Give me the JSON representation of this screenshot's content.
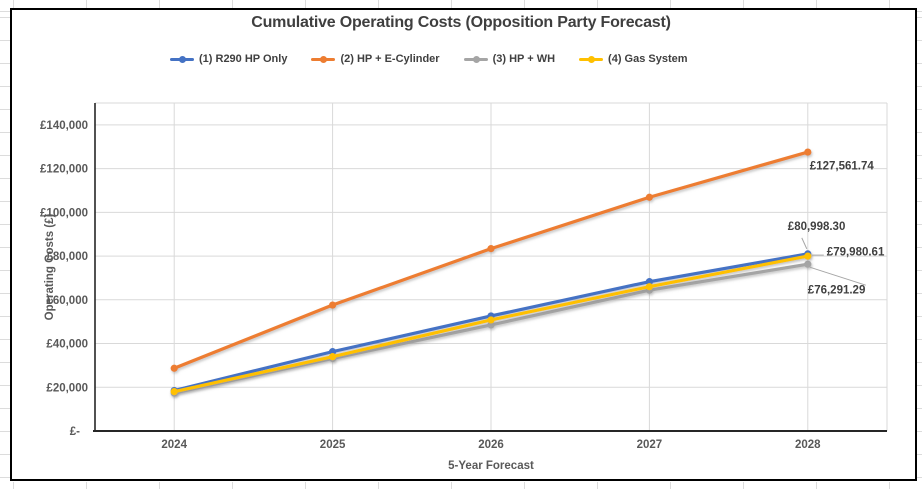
{
  "chart_data": {
    "type": "line",
    "title": "Cumulative Operating Costs (Opposition Party Forecast)",
    "xlabel": "5-Year Forecast",
    "ylabel": "Operating Costs (£)",
    "categories": [
      "2024",
      "2025",
      "2026",
      "2027",
      "2028"
    ],
    "series": [
      {
        "name": "(1) R290 HP Only",
        "color": "#4472C4",
        "values": [
          18500,
          36300,
          52600,
          68300,
          80998.3
        ],
        "end_label": "£80,998.30"
      },
      {
        "name": "(2) HP + E-Cylinder",
        "color": "#ED7D31",
        "values": [
          28700,
          57600,
          83400,
          106900,
          127561.74
        ],
        "end_label": "£127,561.74"
      },
      {
        "name": "(3) HP + WH",
        "color": "#A5A5A5",
        "values": [
          17400,
          33200,
          48500,
          64400,
          76291.29
        ],
        "end_label": "£76,291.29"
      },
      {
        "name": "(4) Gas System",
        "color": "#FFC000",
        "values": [
          18000,
          34000,
          50800,
          66000,
          79980.61
        ],
        "end_label": "£79,980.61"
      }
    ],
    "ylim": [
      0,
      150000
    ],
    "yticks": [
      {
        "value": 140000,
        "label": "£140,000"
      },
      {
        "value": 120000,
        "label": "£120,000"
      },
      {
        "value": 100000,
        "label": "£100,000"
      },
      {
        "value": 80000,
        "label": "£80,000"
      },
      {
        "value": 60000,
        "label": "£60,000"
      },
      {
        "value": 40000,
        "label": "£40,000"
      },
      {
        "value": 20000,
        "label": "£20,000"
      },
      {
        "value": 0,
        "label": "£-"
      }
    ],
    "grid": true,
    "legend_position": "top",
    "colors": {
      "gridline": "#d9d9d9",
      "axis_line": "#262626",
      "tick_text": "#595959",
      "label_text": "#404040"
    }
  }
}
